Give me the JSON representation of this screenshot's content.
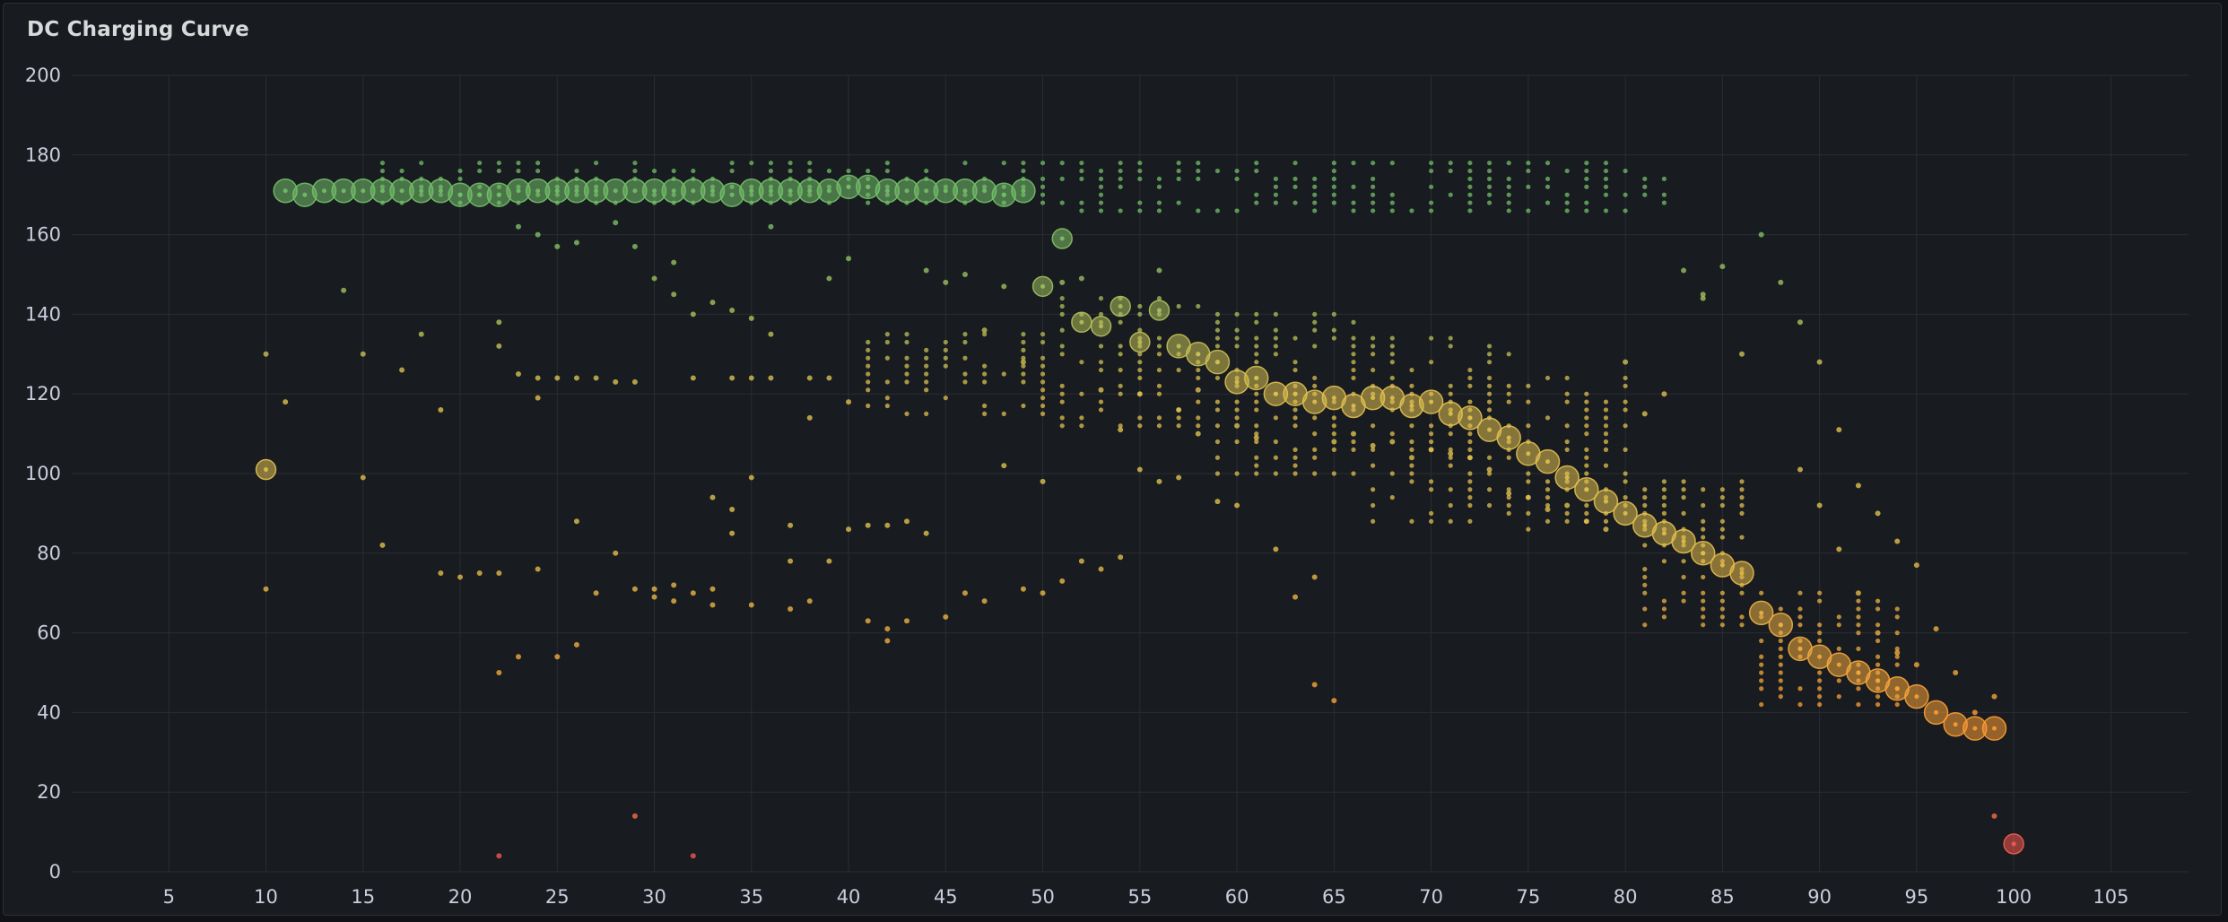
{
  "panel": {
    "title": "DC Charging Curve"
  },
  "colors": {
    "background": "#111217",
    "panel": "#181b1f",
    "grid": "#2a2d32",
    "text": "#ccccdc",
    "high": "#73bf69",
    "mid": "#e0c050",
    "orange": "#ff9830",
    "low": "#f2495c"
  },
  "chart_data": {
    "type": "scatter",
    "title": "DC Charging Curve",
    "xlabel": "",
    "ylabel": "",
    "xlim": [
      0,
      109
    ],
    "ylim": [
      0,
      200
    ],
    "x_ticks": [
      5,
      10,
      15,
      20,
      25,
      30,
      35,
      40,
      45,
      50,
      55,
      60,
      65,
      70,
      75,
      80,
      85,
      90,
      95,
      100,
      105
    ],
    "y_ticks": [
      0,
      20,
      40,
      60,
      80,
      100,
      120,
      140,
      160,
      180,
      200
    ],
    "grid": true,
    "legend": "none",
    "color_scale": "green (high) to yellow to orange to red (low)",
    "main_curve": {
      "x": [
        10,
        11,
        12,
        13,
        14,
        15,
        16,
        17,
        18,
        19,
        20,
        21,
        22,
        23,
        24,
        25,
        26,
        27,
        28,
        29,
        30,
        31,
        32,
        33,
        34,
        35,
        36,
        37,
        38,
        39,
        40,
        41,
        42,
        43,
        44,
        45,
        46,
        47,
        48,
        49,
        50,
        51,
        52,
        53,
        54,
        55,
        56,
        57,
        58,
        59,
        60,
        61,
        62,
        63,
        64,
        65,
        66,
        67,
        68,
        69,
        70,
        71,
        72,
        73,
        74,
        75,
        76,
        77,
        78,
        79,
        80,
        81,
        82,
        83,
        84,
        85,
        86,
        87,
        88,
        89,
        90,
        91,
        92,
        93,
        94,
        95,
        96,
        97,
        98,
        99,
        100
      ],
      "y": [
        101,
        171,
        170,
        171,
        171,
        171,
        171,
        171,
        171,
        171,
        170,
        170,
        170,
        171,
        171,
        171,
        171,
        171,
        171,
        171,
        171,
        171,
        171,
        171,
        170,
        171,
        171,
        171,
        171,
        171,
        172,
        172,
        171,
        171,
        171,
        171,
        171,
        171,
        170,
        171,
        147,
        159,
        138,
        137,
        142,
        133,
        141,
        132,
        130,
        128,
        123,
        124,
        120,
        120,
        118,
        119,
        117,
        119,
        119,
        117,
        118,
        115,
        114,
        111,
        109,
        105,
        103,
        99,
        96,
        93,
        90,
        87,
        85,
        83,
        80,
        77,
        75,
        65,
        62,
        56,
        54,
        52,
        50,
        48,
        46,
        44,
        40,
        37,
        36,
        36,
        7
      ],
      "size": [
        2,
        3,
        3,
        3,
        3,
        3,
        3,
        3,
        3,
        3,
        3,
        3,
        3,
        3,
        3,
        3,
        3,
        3,
        3,
        3,
        3,
        3,
        3,
        3,
        3,
        3,
        3,
        3,
        3,
        3,
        3,
        3,
        3,
        3,
        3,
        3,
        3,
        3,
        3,
        3,
        2,
        2,
        2,
        2,
        2,
        2,
        2,
        3,
        3,
        3,
        3,
        3,
        3,
        3,
        3,
        3,
        3,
        3,
        3,
        3,
        3,
        3,
        3,
        3,
        3,
        3,
        3,
        3,
        3,
        3,
        3,
        3,
        3,
        3,
        3,
        3,
        3,
        3,
        3,
        3,
        3,
        3,
        3,
        3,
        3,
        3,
        3,
        3,
        3,
        3,
        2
      ]
    },
    "column_ranges": [
      {
        "x_from": 16,
        "x_to": 49,
        "y_from": 168,
        "y_to": 178
      },
      {
        "x_from": 50,
        "x_to": 82,
        "y_from": 166,
        "y_to": 179
      },
      {
        "x_from": 41,
        "x_to": 50,
        "y_from": 115,
        "y_to": 136
      },
      {
        "x_from": 51,
        "x_to": 58,
        "y_from": 112,
        "y_to": 145
      },
      {
        "x_from": 59,
        "x_to": 66,
        "y_from": 100,
        "y_to": 140
      },
      {
        "x_from": 67,
        "x_to": 74,
        "y_from": 88,
        "y_to": 135
      },
      {
        "x_from": 75,
        "x_to": 80,
        "y_from": 86,
        "y_to": 125
      },
      {
        "x_from": 81,
        "x_to": 86,
        "y_from": 62,
        "y_to": 98
      },
      {
        "x_from": 87,
        "x_to": 94,
        "y_from": 42,
        "y_to": 70
      }
    ],
    "scatter_points": {
      "x": [
        10,
        10,
        11,
        14,
        15,
        15,
        16,
        17,
        18,
        19,
        19,
        20,
        21,
        22,
        22,
        22,
        22,
        22,
        23,
        23,
        23,
        24,
        24,
        24,
        24,
        25,
        25,
        25,
        26,
        26,
        26,
        26,
        27,
        27,
        28,
        28,
        28,
        29,
        29,
        29,
        29,
        30,
        30,
        30,
        31,
        31,
        31,
        31,
        32,
        32,
        32,
        32,
        33,
        33,
        33,
        33,
        34,
        34,
        34,
        34,
        35,
        35,
        35,
        35,
        36,
        36,
        36,
        37,
        37,
        37,
        38,
        38,
        38,
        39,
        39,
        39,
        40,
        40,
        40,
        41,
        41,
        42,
        42,
        42,
        43,
        43,
        44,
        44,
        45,
        45,
        46,
        46,
        47,
        47,
        48,
        48,
        49,
        49,
        50,
        50,
        51,
        51,
        52,
        52,
        53,
        53,
        54,
        54,
        55,
        55,
        56,
        56,
        57,
        57,
        58,
        58,
        59,
        60,
        60,
        61,
        62,
        63,
        64,
        64,
        65,
        65,
        66,
        67,
        68,
        69,
        70,
        71,
        72,
        73,
        74,
        75,
        76,
        77,
        78,
        79,
        80,
        81,
        82,
        83,
        84,
        84,
        85,
        86,
        87,
        88,
        89,
        89,
        90,
        90,
        91,
        91,
        92,
        92,
        93,
        93,
        94,
        94,
        95,
        95,
        96,
        97,
        98,
        99,
        99
      ],
      "y": [
        130,
        71,
        118,
        146,
        130,
        99,
        82,
        126,
        135,
        116,
        75,
        74,
        75,
        138,
        132,
        75,
        50,
        4,
        162,
        125,
        54,
        160,
        124,
        119,
        76,
        157,
        124,
        54,
        158,
        124,
        88,
        57,
        124,
        70,
        163,
        123,
        80,
        157,
        14,
        71,
        123,
        149,
        71,
        69,
        153,
        145,
        72,
        68,
        140,
        124,
        70,
        4,
        143,
        94,
        71,
        67,
        141,
        124,
        91,
        85,
        139,
        124,
        99,
        67,
        162,
        135,
        124,
        87,
        66,
        78,
        114,
        124,
        68,
        149,
        124,
        78,
        154,
        118,
        86,
        63,
        87,
        61,
        58,
        87,
        63,
        88,
        151,
        85,
        148,
        64,
        150,
        70,
        136,
        68,
        147,
        102,
        128,
        71,
        98,
        70,
        148,
        73,
        149,
        78,
        121,
        76,
        111,
        79,
        120,
        101,
        98,
        151,
        116,
        99,
        121,
        110,
        93,
        112,
        92,
        109,
        81,
        69,
        47,
        74,
        108,
        43,
        110,
        107,
        108,
        104,
        106,
        105,
        104,
        101,
        95,
        94,
        91,
        92,
        88,
        86,
        128,
        115,
        120,
        151,
        145,
        144,
        152,
        130,
        160,
        148,
        101,
        138,
        128,
        92,
        111,
        81,
        97,
        70,
        90,
        60,
        83,
        55,
        77,
        52,
        61,
        50,
        40,
        44,
        14
      ]
    }
  }
}
